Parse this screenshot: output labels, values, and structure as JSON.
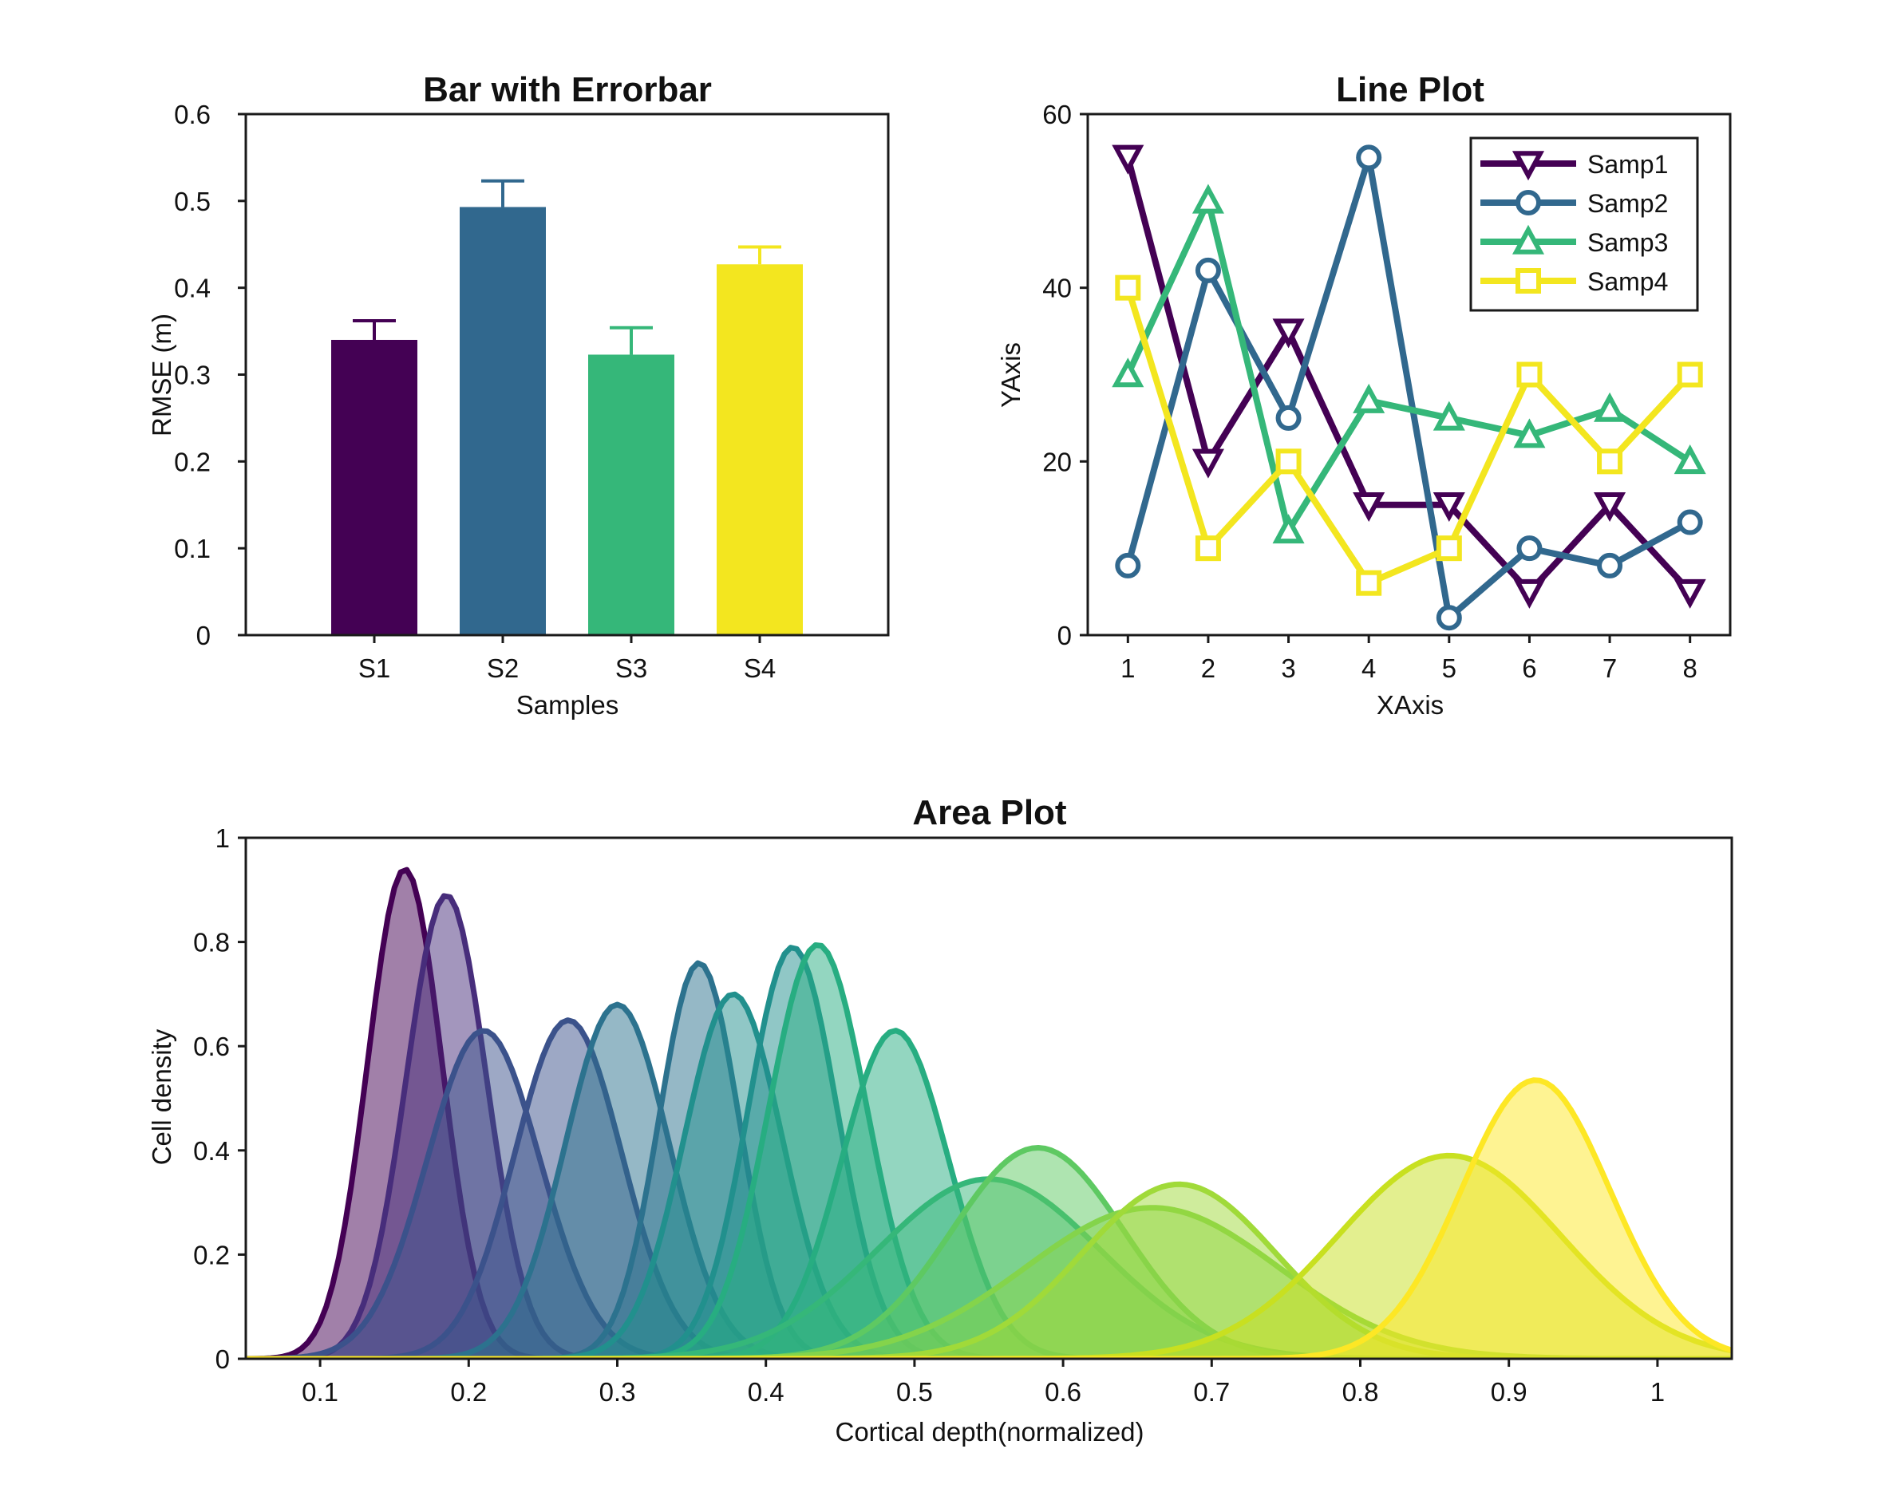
{
  "chart_data": [
    {
      "type": "bar",
      "title": "Bar with Errorbar",
      "xlabel": "Samples",
      "ylabel": "RMSE (m)",
      "categories": [
        "S1",
        "S2",
        "S3",
        "S4"
      ],
      "values": [
        0.34,
        0.493,
        0.323,
        0.427
      ],
      "errors": [
        0.022,
        0.03,
        0.031,
        0.02
      ],
      "colors": [
        "#440154",
        "#31688e",
        "#35b779",
        "#f3e61f"
      ],
      "ylim": [
        0,
        0.6
      ],
      "yticks": [
        0,
        0.1,
        0.2,
        0.3,
        0.4,
        0.5,
        0.6
      ],
      "ytick_labels": [
        "0",
        "0.1",
        "0.2",
        "0.3",
        "0.4",
        "0.5",
        "0.6"
      ],
      "grid": false
    },
    {
      "type": "line",
      "title": "Line Plot",
      "xlabel": "XAxis",
      "ylabel": "YAxis",
      "x": [
        1,
        2,
        3,
        4,
        5,
        6,
        7,
        8
      ],
      "xlim": [
        0.5,
        8.5
      ],
      "ylim": [
        0,
        60
      ],
      "xticks": [
        1,
        2,
        3,
        4,
        5,
        6,
        7,
        8
      ],
      "yticks": [
        0,
        20,
        40,
        60
      ],
      "legend_position": "top-right",
      "grid": false,
      "series": [
        {
          "name": "Samp1",
          "values": [
            55,
            20,
            35,
            15,
            15,
            5,
            15,
            5
          ],
          "color": "#440154",
          "marker": "triangle-down"
        },
        {
          "name": "Samp2",
          "values": [
            8,
            42,
            25,
            55,
            2,
            10,
            8,
            13
          ],
          "color": "#31688e",
          "marker": "circle"
        },
        {
          "name": "Samp3",
          "values": [
            30,
            50,
            12,
            27,
            25,
            23,
            26,
            20
          ],
          "color": "#35b779",
          "marker": "triangle-up"
        },
        {
          "name": "Samp4",
          "values": [
            40,
            10,
            20,
            6,
            10,
            30,
            20,
            30
          ],
          "color": "#f3e61f",
          "marker": "square"
        }
      ]
    },
    {
      "type": "area",
      "title": "Area Plot",
      "xlabel": "Cortical depth(normalized)",
      "ylabel": "Cell density",
      "xlim": [
        0.05,
        1.05
      ],
      "ylim": [
        0,
        1
      ],
      "xticks": [
        0.1,
        0.2,
        0.3,
        0.4,
        0.5,
        0.6,
        0.7,
        0.8,
        0.9,
        1
      ],
      "xtick_labels": [
        "0.1",
        "0.2",
        "0.3",
        "0.4",
        "0.5",
        "0.6",
        "0.7",
        "0.8",
        "0.9",
        "1"
      ],
      "yticks": [
        0,
        0.2,
        0.4,
        0.6,
        0.8,
        1
      ],
      "ytick_labels": [
        "0",
        "0.2",
        "0.4",
        "0.6",
        "0.8",
        "1"
      ],
      "fill_opacity": 0.5,
      "grid": false,
      "series": [
        {
          "peak_x": 0.157,
          "peak_y": 0.94,
          "width": 0.025,
          "color": "#440154"
        },
        {
          "peak_x": 0.185,
          "peak_y": 0.89,
          "width": 0.027,
          "color": "#472d7b"
        },
        {
          "peak_x": 0.21,
          "peak_y": 0.63,
          "width": 0.038,
          "color": "#3b528b"
        },
        {
          "peak_x": 0.267,
          "peak_y": 0.65,
          "width": 0.036,
          "color": "#3b528b"
        },
        {
          "peak_x": 0.3,
          "peak_y": 0.68,
          "width": 0.035,
          "color": "#2c728e"
        },
        {
          "peak_x": 0.355,
          "peak_y": 0.76,
          "width": 0.027,
          "color": "#2c728e"
        },
        {
          "peak_x": 0.378,
          "peak_y": 0.7,
          "width": 0.033,
          "color": "#21908d"
        },
        {
          "peak_x": 0.418,
          "peak_y": 0.79,
          "width": 0.03,
          "color": "#21908d"
        },
        {
          "peak_x": 0.435,
          "peak_y": 0.795,
          "width": 0.033,
          "color": "#27ad81"
        },
        {
          "peak_x": 0.487,
          "peak_y": 0.63,
          "width": 0.036,
          "color": "#27ad81"
        },
        {
          "peak_x": 0.55,
          "peak_y": 0.345,
          "width": 0.075,
          "color": "#35b779"
        },
        {
          "peak_x": 0.583,
          "peak_y": 0.405,
          "width": 0.058,
          "color": "#5ec962"
        },
        {
          "peak_x": 0.66,
          "peak_y": 0.29,
          "width": 0.085,
          "color": "#84d44b"
        },
        {
          "peak_x": 0.678,
          "peak_y": 0.335,
          "width": 0.065,
          "color": "#a0da39"
        },
        {
          "peak_x": 0.86,
          "peak_y": 0.39,
          "width": 0.075,
          "color": "#c8e020"
        },
        {
          "peak_x": 0.918,
          "peak_y": 0.535,
          "width": 0.05,
          "color": "#fde725"
        }
      ]
    }
  ]
}
